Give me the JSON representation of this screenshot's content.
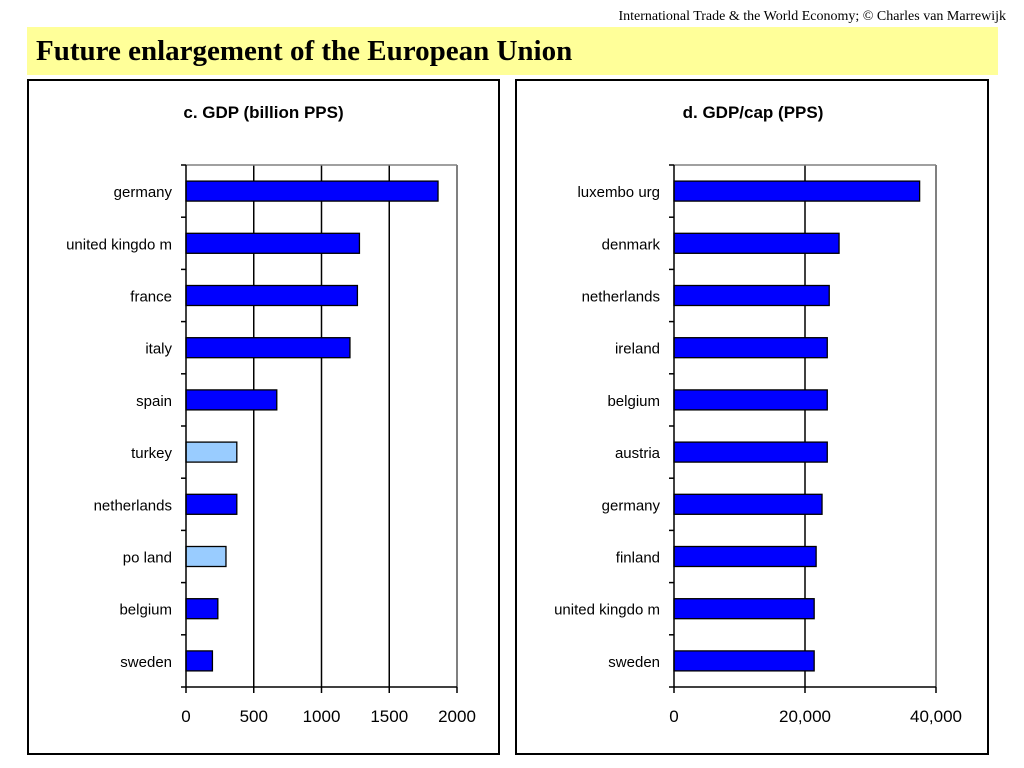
{
  "header": {
    "credit": "International Trade & the World Economy;  © Charles van Marrewijk",
    "title": "Future enlargement of the European Union"
  },
  "colors": {
    "member_bar": "#0000ff",
    "candidate_bar": "#99ccff",
    "title_background": "#ffff99"
  },
  "chart_data": [
    {
      "type": "bar",
      "orientation": "horizontal",
      "title": "c. GDP (billion PPS)",
      "xlabel": "",
      "ylabel": "",
      "categories": [
        "germany",
        "united kingdo m",
        "france",
        "italy",
        "spain",
        "turkey",
        "netherlands",
        "po land",
        "belgium",
        "sweden"
      ],
      "values": [
        1860,
        1280,
        1265,
        1210,
        670,
        375,
        375,
        295,
        235,
        195
      ],
      "highlight": [
        false,
        false,
        false,
        false,
        false,
        true,
        false,
        true,
        false,
        false
      ],
      "xlim": [
        0,
        2000
      ],
      "xticks": [
        0,
        500,
        1000,
        1500,
        2000
      ],
      "xtick_labels": [
        "0",
        "500",
        "1000",
        "1500",
        "2000"
      ],
      "grid": true
    },
    {
      "type": "bar",
      "orientation": "horizontal",
      "title": "d. GDP/cap (PPS)",
      "xlabel": "",
      "ylabel": "",
      "categories": [
        "luxembo urg",
        "denmark",
        "netherlands",
        "ireland",
        "belgium",
        "austria",
        "germany",
        "finland",
        "united kingdo m",
        "sweden"
      ],
      "values": [
        37500,
        25200,
        23700,
        23400,
        23400,
        23400,
        22600,
        21700,
        21400,
        21400
      ],
      "highlight": [
        false,
        false,
        false,
        false,
        false,
        false,
        false,
        false,
        false,
        false
      ],
      "xlim": [
        0,
        40000
      ],
      "xticks": [
        0,
        20000,
        40000
      ],
      "xtick_labels": [
        "0",
        "20,000",
        "40,000"
      ],
      "grid": true
    }
  ]
}
